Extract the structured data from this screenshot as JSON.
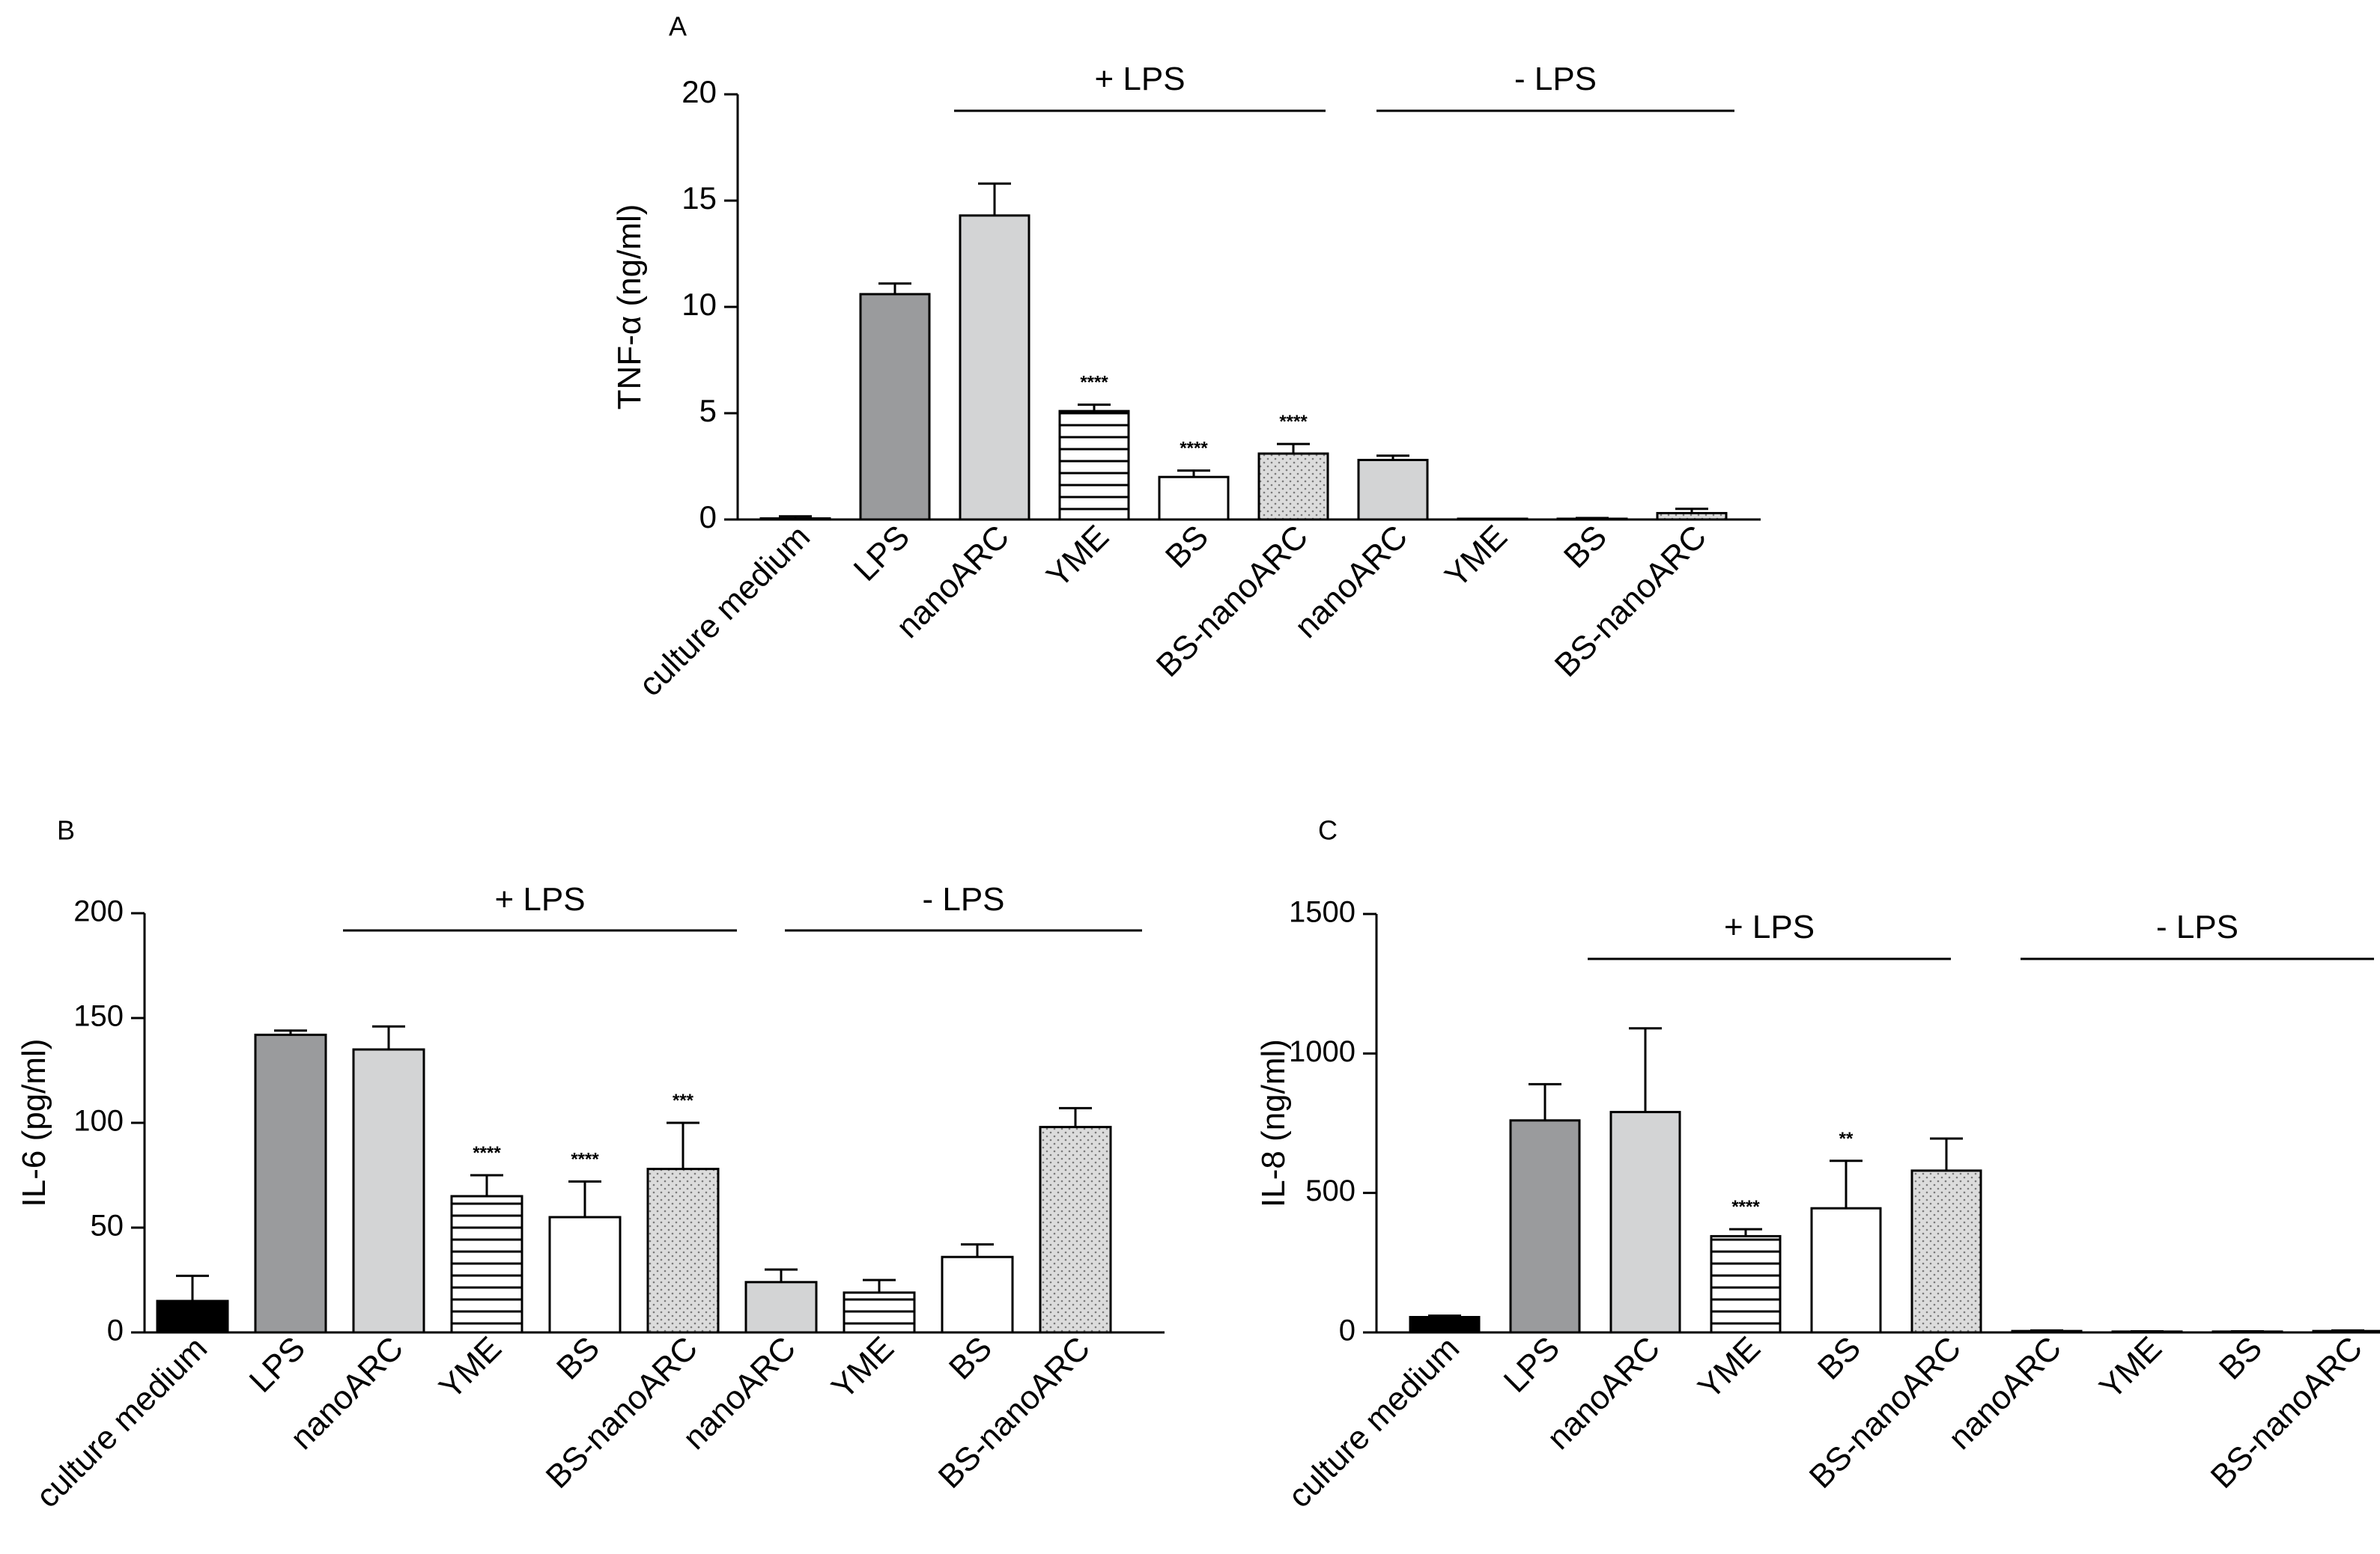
{
  "colors": {
    "black": "#000000",
    "dark_gray": "#9a9b9d",
    "light_gray": "#d3d4d5",
    "white": "#ffffff",
    "dots": "#8a8a8a"
  },
  "chart_data": [
    {
      "type": "bar",
      "panel_label": "A",
      "ylabel": "TNF-α (ng/ml)",
      "ylim": [
        0,
        20
      ],
      "yticks": [
        0,
        5,
        10,
        15,
        20
      ],
      "categories": [
        "culture medium",
        "LPS",
        "nanoARC",
        "YME",
        "BS",
        "BS-nanoARC",
        "nanoARC",
        "YME",
        "BS",
        "BS-nanoARC"
      ],
      "values": [
        0.05,
        10.6,
        14.3,
        5.1,
        2.0,
        3.1,
        2.8,
        0.0,
        0.02,
        0.3
      ],
      "errors": [
        0.1,
        0.5,
        1.5,
        0.3,
        0.3,
        0.45,
        0.2,
        0.0,
        0.05,
        0.2
      ],
      "fills": [
        "white",
        "dark_gray",
        "light_gray",
        "stripes",
        "white",
        "dots",
        "light_gray",
        "white",
        "white",
        "dots"
      ],
      "significance": [
        "",
        "",
        "",
        "****",
        "****",
        "****",
        "",
        "",
        "",
        ""
      ],
      "groups": [
        {
          "label": "+ LPS",
          "from": 2,
          "to": 5
        },
        {
          "label": "- LPS",
          "from": 6,
          "to": 9
        }
      ]
    },
    {
      "type": "bar",
      "panel_label": "B",
      "ylabel": "IL-6 (pg/ml)",
      "ylim": [
        0,
        200
      ],
      "yticks": [
        0,
        50,
        100,
        150,
        200
      ],
      "categories": [
        "culture medium",
        "LPS",
        "nanoARC",
        "YME",
        "BS",
        "BS-nanoARC",
        "nanoARC",
        "YME",
        "BS",
        "BS-nanoARC"
      ],
      "values": [
        15,
        142,
        135,
        65,
        55,
        78,
        24,
        19,
        36,
        98
      ],
      "errors": [
        12,
        2,
        11,
        10,
        17,
        22,
        6,
        6,
        6,
        9
      ],
      "fills": [
        "black",
        "dark_gray",
        "light_gray",
        "stripes",
        "white",
        "dots",
        "light_gray",
        "stripes",
        "white",
        "dots"
      ],
      "significance": [
        "",
        "",
        "",
        "****",
        "****",
        "***",
        "",
        "",
        "",
        ""
      ],
      "groups": [
        {
          "label": "+ LPS",
          "from": 2,
          "to": 5
        },
        {
          "label": "- LPS",
          "from": 6,
          "to": 9
        }
      ]
    },
    {
      "type": "bar",
      "panel_label": "C",
      "ylabel": "IL-8 (ng/ml)",
      "ylim": [
        0,
        1500
      ],
      "yticks": [
        0,
        500,
        1000,
        1500
      ],
      "categories": [
        "culture medium",
        "LPS",
        "nanoARC",
        "YME",
        "BS",
        "BS-nanoARC",
        "nanoARC",
        "YME",
        "BS",
        "BS-nanoARC"
      ],
      "values": [
        55,
        760,
        790,
        345,
        445,
        580,
        5,
        3,
        3,
        5
      ],
      "errors": [
        5,
        130,
        300,
        25,
        170,
        115,
        2,
        1,
        1,
        2
      ],
      "fills": [
        "black",
        "dark_gray",
        "light_gray",
        "stripes",
        "white",
        "dots",
        "light_gray",
        "stripes",
        "white",
        "dots"
      ],
      "significance": [
        "",
        "",
        "",
        "****",
        "**",
        "",
        "",
        "",
        "",
        ""
      ],
      "groups": [
        {
          "label": "+ LPS",
          "from": 2,
          "to": 5
        },
        {
          "label": "- LPS",
          "from": 6,
          "to": 9
        }
      ]
    }
  ]
}
